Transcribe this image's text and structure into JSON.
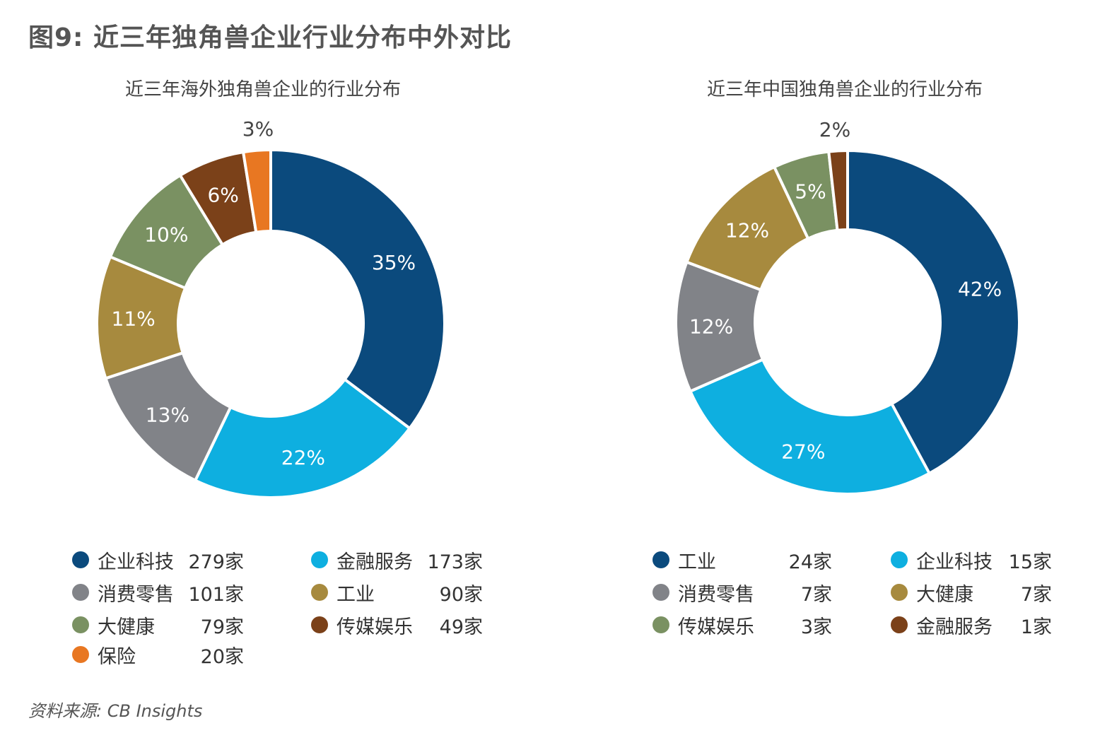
{
  "title": "图9: 近三年独角兽企业行业分布中外对比",
  "source": "资料来源: CB Insights",
  "chart_data": [
    {
      "type": "pie",
      "subtype": "donut",
      "title": "近三年海外独角兽企业的行业分布",
      "unit": "家",
      "slices": [
        {
          "label": "企业科技",
          "value": 279,
          "percent_label": "35%",
          "color": "#0b4a7d",
          "count_label": "279家"
        },
        {
          "label": "金融服务",
          "value": 173,
          "percent_label": "22%",
          "color": "#0eafe0",
          "count_label": "173家"
        },
        {
          "label": "消费零售",
          "value": 101,
          "percent_label": "13%",
          "color": "#818388",
          "count_label": "101家"
        },
        {
          "label": "工业",
          "value": 90,
          "percent_label": "11%",
          "color": "#a78a3e",
          "count_label": "90家"
        },
        {
          "label": "大健康",
          "value": 79,
          "percent_label": "10%",
          "color": "#7a9162",
          "count_label": "79家"
        },
        {
          "label": "传媒娱乐",
          "value": 49,
          "percent_label": "6%",
          "color": "#7b4119",
          "count_label": "49家"
        },
        {
          "label": "保险",
          "value": 20,
          "percent_label": "3%",
          "color": "#e87722",
          "count_label": "20家"
        }
      ]
    },
    {
      "type": "pie",
      "subtype": "donut",
      "title": "近三年中国独角兽企业的行业分布",
      "unit": "家",
      "slices": [
        {
          "label": "工业",
          "value": 24,
          "percent_label": "42%",
          "color": "#0b4a7d",
          "count_label": "24家"
        },
        {
          "label": "企业科技",
          "value": 15,
          "percent_label": "27%",
          "color": "#0eafe0",
          "count_label": "15家"
        },
        {
          "label": "消费零售",
          "value": 7,
          "percent_label": "12%",
          "color": "#818388",
          "count_label": "7家"
        },
        {
          "label": "大健康",
          "value": 7,
          "percent_label": "12%",
          "color": "#a78a3e",
          "count_label": "7家"
        },
        {
          "label": "传媒娱乐",
          "value": 3,
          "percent_label": "5%",
          "color": "#7a9162",
          "count_label": "3家"
        },
        {
          "label": "金融服务",
          "value": 1,
          "percent_label": "2%",
          "color": "#7b4119",
          "count_label": "1家"
        }
      ]
    }
  ]
}
